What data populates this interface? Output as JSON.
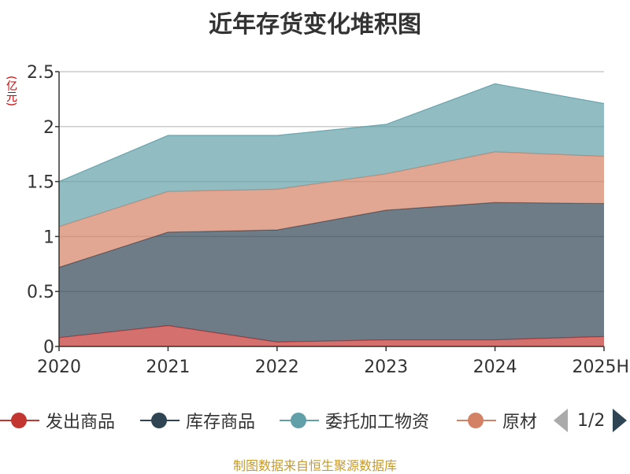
{
  "chart_data": {
    "type": "area",
    "stacked": true,
    "title": "近年存货变化堆积图",
    "unit": "(亿元)",
    "categories": [
      "2020",
      "2021",
      "2022",
      "2023",
      "2024",
      "2025H"
    ],
    "ylim": [
      0,
      2.5
    ],
    "yticks": [
      "0",
      "0.5",
      "1",
      "1.5",
      "2",
      "2.5"
    ],
    "grid": true,
    "legend_position": "bottom",
    "series": [
      {
        "name": "发出商品",
        "color": "#c23531",
        "values": [
          0.08,
          0.19,
          0.04,
          0.06,
          0.06,
          0.09
        ]
      },
      {
        "name": "库存商品",
        "color": "#2f4554",
        "values": [
          0.64,
          0.85,
          1.02,
          1.18,
          1.25,
          1.21
        ]
      },
      {
        "name": "原材料",
        "color": "#d48265",
        "values": [
          0.37,
          0.37,
          0.37,
          0.33,
          0.46,
          0.43
        ]
      },
      {
        "name": "委托加工物资",
        "color": "#61a0a8",
        "values": [
          0.41,
          0.51,
          0.49,
          0.45,
          0.62,
          0.48
        ]
      }
    ],
    "source": "制图数据来自恒生聚源数据库"
  },
  "legend": {
    "items": [
      {
        "label": "发出商品",
        "color": "#c23531"
      },
      {
        "label": "库存商品",
        "color": "#2f4554"
      },
      {
        "label": "委托加工物资",
        "color": "#61a0a8"
      },
      {
        "label": "原材",
        "color": "#d48265"
      }
    ],
    "page": "1/2"
  }
}
